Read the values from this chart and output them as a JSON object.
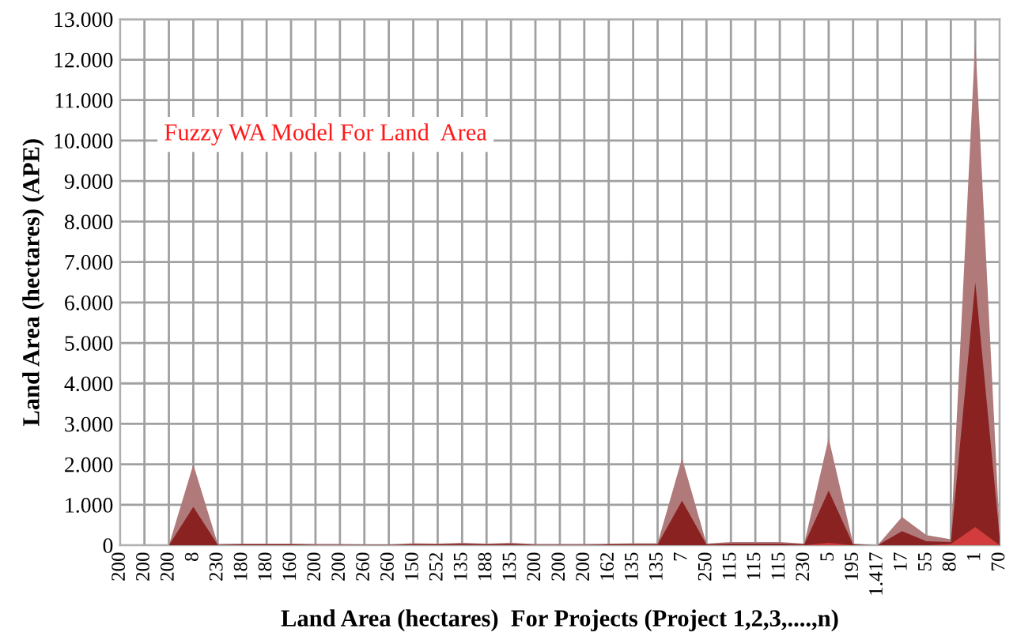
{
  "chart_data": {
    "type": "area",
    "xlabel": "Land Area (hectares)  For Projects (Project 1,2,3,....,n)",
    "ylabel": "Land Area (hectares) (APE)",
    "annotations": [
      "Fuzzy WA Model For Land  Area"
    ],
    "categories": [
      "200",
      "200",
      "200",
      "8",
      "230",
      "180",
      "180",
      "160",
      "200",
      "200",
      "260",
      "260",
      "150",
      "252",
      "135",
      "188",
      "135",
      "200",
      "200",
      "200",
      "162",
      "135",
      "135",
      "7",
      "250",
      "115",
      "115",
      "115",
      "230",
      "5",
      "195",
      "1.417",
      "17",
      "55",
      "80",
      "1",
      "70"
    ],
    "series": [
      {
        "color": "#b07a7a",
        "values": [
          0,
          0,
          0,
          2000,
          30,
          40,
          40,
          40,
          30,
          30,
          20,
          20,
          50,
          40,
          60,
          40,
          60,
          30,
          30,
          30,
          40,
          50,
          50,
          2150,
          40,
          80,
          80,
          80,
          40,
          2650,
          40,
          0,
          700,
          250,
          150,
          12500,
          300
        ]
      },
      {
        "color": "#8b2222",
        "values": [
          0,
          0,
          0,
          950,
          10,
          20,
          20,
          20,
          10,
          10,
          10,
          10,
          20,
          20,
          30,
          20,
          30,
          10,
          10,
          10,
          20,
          20,
          20,
          1100,
          20,
          40,
          40,
          40,
          20,
          1350,
          20,
          0,
          350,
          100,
          80,
          6500,
          200
        ]
      },
      {
        "color": "#d23c3c",
        "values": [
          0,
          0,
          0,
          0,
          0,
          0,
          0,
          0,
          0,
          0,
          0,
          0,
          0,
          0,
          0,
          0,
          0,
          0,
          0,
          0,
          0,
          0,
          0,
          0,
          0,
          0,
          0,
          0,
          0,
          60,
          0,
          0,
          0,
          0,
          30,
          450,
          0
        ]
      }
    ],
    "ylim": [
      0,
      13000
    ],
    "yticks": [
      0,
      {
        "value": 1000,
        "label": "1.000"
      },
      {
        "value": 2000,
        "label": "2.000"
      },
      {
        "value": 3000,
        "label": "3.000"
      },
      {
        "value": 4000,
        "label": "4.000"
      },
      {
        "value": 5000,
        "label": "5.000"
      },
      {
        "value": 6000,
        "label": "6.000"
      },
      {
        "value": 7000,
        "label": "7.000"
      },
      {
        "value": 8000,
        "label": "8.000"
      },
      {
        "value": 9000,
        "label": "9.000"
      },
      {
        "value": 10000,
        "label": "10.000"
      },
      {
        "value": 11000,
        "label": "11.000"
      },
      {
        "value": 12000,
        "label": "12.000"
      },
      {
        "value": 13000,
        "label": "13.000"
      }
    ],
    "grid": true,
    "legend": false
  }
}
